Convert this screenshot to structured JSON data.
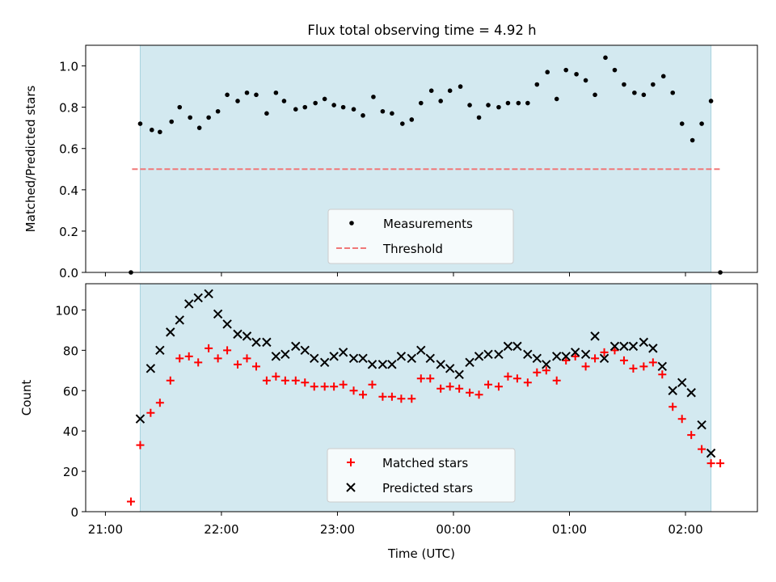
{
  "figure": {
    "title": "Flux total observing time = 4.92 h"
  },
  "colors": {
    "shade": "#d3e9f0",
    "measurements": "#000000",
    "threshold": "#f07878",
    "matched": "#ff0000",
    "predicted": "#000000"
  },
  "chart_data": [
    {
      "type": "scatter",
      "ylabel": "Matched/Predicted stars",
      "xlabel": "",
      "xlim": [
        -0.17,
        5.62
      ],
      "ylim": [
        0,
        1.1
      ],
      "yticks": [
        "0.0",
        "0.2",
        "0.4",
        "0.6",
        "0.8",
        "1.0"
      ],
      "yticks_values": [
        0,
        0.2,
        0.4,
        0.6,
        0.8,
        1.0
      ],
      "shaded_span": [
        0.3,
        5.22
      ],
      "threshold": {
        "name": "Threshold",
        "y": 0.5,
        "x_range": [
          0.23,
          5.3
        ]
      },
      "legend": {
        "position": "lower center",
        "entries": [
          "Measurements",
          "Threshold"
        ]
      },
      "series": [
        {
          "name": "Measurements",
          "x": [
            0.22,
            0.3,
            0.4,
            0.47,
            0.57,
            0.64,
            0.73,
            0.81,
            0.89,
            0.97,
            1.05,
            1.14,
            1.22,
            1.3,
            1.39,
            1.47,
            1.54,
            1.64,
            1.72,
            1.81,
            1.89,
            1.97,
            2.05,
            2.14,
            2.22,
            2.31,
            2.39,
            2.47,
            2.56,
            2.64,
            2.72,
            2.81,
            2.89,
            2.97,
            3.06,
            3.14,
            3.22,
            3.3,
            3.39,
            3.47,
            3.56,
            3.64,
            3.72,
            3.81,
            3.89,
            3.97,
            4.06,
            4.14,
            4.22,
            4.31,
            4.39,
            4.47,
            4.56,
            4.64,
            4.72,
            4.81,
            4.89,
            4.97,
            5.06,
            5.14,
            5.22,
            5.3
          ],
          "values": [
            0.0,
            0.72,
            0.69,
            0.68,
            0.73,
            0.8,
            0.75,
            0.7,
            0.75,
            0.78,
            0.86,
            0.83,
            0.87,
            0.86,
            0.77,
            0.87,
            0.83,
            0.79,
            0.8,
            0.82,
            0.84,
            0.81,
            0.8,
            0.79,
            0.76,
            0.85,
            0.78,
            0.77,
            0.72,
            0.74,
            0.82,
            0.88,
            0.83,
            0.88,
            0.9,
            0.81,
            0.75,
            0.81,
            0.8,
            0.82,
            0.82,
            0.82,
            0.91,
            0.97,
            0.84,
            0.98,
            0.96,
            0.93,
            0.86,
            1.04,
            0.98,
            0.91,
            0.87,
            0.86,
            0.91,
            0.95,
            0.87,
            0.72,
            0.64,
            0.72,
            0.83,
            0.0
          ]
        }
      ]
    },
    {
      "type": "scatter",
      "ylabel": "Count",
      "xlabel": "Time (UTC)",
      "xlim": [
        -0.17,
        5.62
      ],
      "ylim": [
        0,
        113
      ],
      "yticks": [
        "0",
        "20",
        "40",
        "60",
        "80",
        "100"
      ],
      "yticks_values": [
        0,
        20,
        40,
        60,
        80,
        100
      ],
      "xticks": [
        "21:00",
        "22:00",
        "23:00",
        "00:00",
        "01:00",
        "02:00"
      ],
      "xticks_values": [
        0,
        1,
        2,
        3,
        4,
        5
      ],
      "shaded_span": [
        0.3,
        5.22
      ],
      "legend": {
        "position": "lower center",
        "entries": [
          "Matched stars",
          "Predicted stars"
        ]
      },
      "series": [
        {
          "name": "Matched stars",
          "x": [
            0.22,
            0.3,
            0.39,
            0.47,
            0.56,
            0.64,
            0.72,
            0.8,
            0.89,
            0.97,
            1.05,
            1.14,
            1.22,
            1.3,
            1.39,
            1.47,
            1.55,
            1.64,
            1.72,
            1.8,
            1.89,
            1.97,
            2.05,
            2.14,
            2.22,
            2.3,
            2.39,
            2.47,
            2.55,
            2.64,
            2.72,
            2.8,
            2.89,
            2.97,
            3.05,
            3.14,
            3.22,
            3.3,
            3.39,
            3.47,
            3.55,
            3.64,
            3.72,
            3.8,
            3.89,
            3.97,
            4.05,
            4.14,
            4.22,
            4.3,
            4.39,
            4.47,
            4.55,
            4.64,
            4.72,
            4.8,
            4.89,
            4.97,
            5.05,
            5.14,
            5.22,
            5.3
          ],
          "values": [
            5,
            33,
            49,
            54,
            65,
            76,
            77,
            74,
            81,
            76,
            80,
            73,
            76,
            72,
            65,
            67,
            65,
            65,
            64,
            62,
            62,
            62,
            63,
            60,
            58,
            63,
            57,
            57,
            56,
            56,
            66,
            66,
            61,
            62,
            61,
            59,
            58,
            63,
            62,
            67,
            66,
            64,
            69,
            70,
            65,
            75,
            77,
            72,
            76,
            79,
            80,
            75,
            71,
            72,
            74,
            68,
            52,
            46,
            38,
            31,
            24,
            24
          ]
        },
        {
          "name": "Predicted stars",
          "x": [
            0.3,
            0.39,
            0.47,
            0.56,
            0.64,
            0.72,
            0.8,
            0.89,
            0.97,
            1.05,
            1.14,
            1.22,
            1.3,
            1.39,
            1.47,
            1.55,
            1.64,
            1.72,
            1.8,
            1.89,
            1.97,
            2.05,
            2.14,
            2.22,
            2.3,
            2.39,
            2.47,
            2.55,
            2.64,
            2.72,
            2.8,
            2.89,
            2.97,
            3.05,
            3.14,
            3.22,
            3.3,
            3.39,
            3.47,
            3.55,
            3.64,
            3.72,
            3.8,
            3.89,
            3.97,
            4.05,
            4.14,
            4.22,
            4.3,
            4.39,
            4.47,
            4.55,
            4.64,
            4.72,
            4.8,
            4.89,
            4.97,
            5.05,
            5.14,
            5.22
          ],
          "values": [
            46,
            71,
            80,
            89,
            95,
            103,
            106,
            108,
            98,
            93,
            88,
            87,
            84,
            84,
            77,
            78,
            82,
            80,
            76,
            74,
            77,
            79,
            76,
            76,
            73,
            73,
            73,
            77,
            76,
            80,
            76,
            73,
            71,
            68,
            74,
            77,
            78,
            78,
            82,
            82,
            78,
            76,
            73,
            77,
            77,
            79,
            78,
            87,
            76,
            82,
            82,
            82,
            84,
            81,
            72,
            60,
            64,
            59,
            43,
            29
          ]
        }
      ]
    }
  ]
}
